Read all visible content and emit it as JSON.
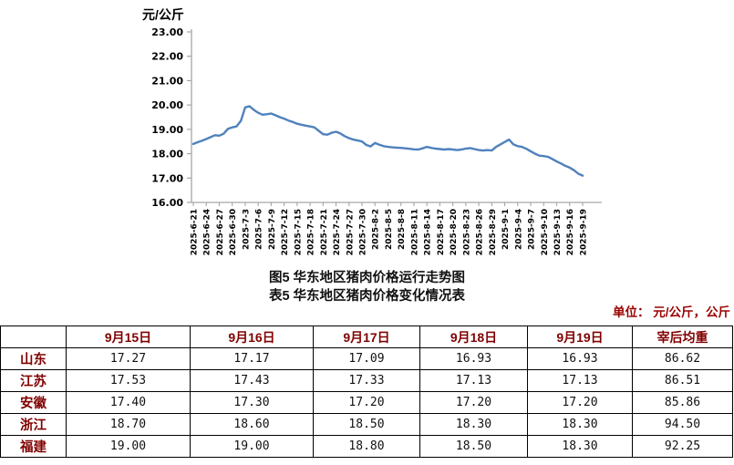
{
  "y_axis_title": "元/公斤",
  "titles": {
    "figure": "图5  华东地区猪肉价格运行走势图",
    "table": "表5  华东地区猪肉价格变化情况表"
  },
  "unit_note": "单位： 元/公斤，公斤",
  "colors": {
    "line": "#4f81bd",
    "axis": "#a6a6a6",
    "header_text": "#800000",
    "unit_text": "#990000"
  },
  "chart_data": [
    {
      "type": "line",
      "title": "图5 华东地区猪肉价格运行走势图",
      "xlabel": "",
      "ylabel": "元/公斤",
      "ylim": [
        16,
        23
      ],
      "grid": false,
      "legend": false,
      "y_tick_labels": [
        "23.00",
        "22.00",
        "21.00",
        "20.00",
        "19.00",
        "18.00",
        "17.00",
        "16.00"
      ],
      "x_tick_labels": [
        "2025-6-21",
        "2025-6-24",
        "2025-6-27",
        "2025-6-30",
        "2025-7-3",
        "2025-7-6",
        "2025-7-9",
        "2025-7-12",
        "2025-7-15",
        "2025-7-18",
        "2025-7-21",
        "2025-7-24",
        "2025-7-27",
        "2025-7-30",
        "2025-8-2",
        "2025-8-5",
        "2025-8-8",
        "2025-8-11",
        "2025-8-14",
        "2025-8-17",
        "2025-8-20",
        "2025-8-23",
        "2025-8-26",
        "2025-8-29",
        "2025-9-1",
        "2025-9-4",
        "2025-9-7",
        "2025-9-10",
        "2025-9-13",
        "2025-9-16",
        "2025-9-19"
      ],
      "x": [
        "2025-6-21",
        "2025-6-22",
        "2025-6-23",
        "2025-6-24",
        "2025-6-25",
        "2025-6-26",
        "2025-6-27",
        "2025-6-28",
        "2025-6-29",
        "2025-6-30",
        "2025-7-1",
        "2025-7-2",
        "2025-7-3",
        "2025-7-4",
        "2025-7-5",
        "2025-7-6",
        "2025-7-7",
        "2025-7-8",
        "2025-7-9",
        "2025-7-10",
        "2025-7-11",
        "2025-7-12",
        "2025-7-13",
        "2025-7-14",
        "2025-7-15",
        "2025-7-16",
        "2025-7-17",
        "2025-7-18",
        "2025-7-19",
        "2025-7-20",
        "2025-7-21",
        "2025-7-22",
        "2025-7-23",
        "2025-7-24",
        "2025-7-25",
        "2025-7-26",
        "2025-7-27",
        "2025-7-28",
        "2025-7-29",
        "2025-7-30",
        "2025-7-31",
        "2025-8-1",
        "2025-8-2",
        "2025-8-3",
        "2025-8-4",
        "2025-8-5",
        "2025-8-6",
        "2025-8-7",
        "2025-8-8",
        "2025-8-9",
        "2025-8-10",
        "2025-8-11",
        "2025-8-12",
        "2025-8-13",
        "2025-8-14",
        "2025-8-15",
        "2025-8-16",
        "2025-8-17",
        "2025-8-18",
        "2025-8-19",
        "2025-8-20",
        "2025-8-21",
        "2025-8-22",
        "2025-8-23",
        "2025-8-24",
        "2025-8-25",
        "2025-8-26",
        "2025-8-27",
        "2025-8-28",
        "2025-8-29",
        "2025-8-30",
        "2025-8-31",
        "2025-9-1",
        "2025-9-2",
        "2025-9-3",
        "2025-9-4",
        "2025-9-5",
        "2025-9-6",
        "2025-9-7",
        "2025-9-8",
        "2025-9-9",
        "2025-9-10",
        "2025-9-11",
        "2025-9-12",
        "2025-9-13",
        "2025-9-14",
        "2025-9-15",
        "2025-9-16",
        "2025-9-17",
        "2025-9-18",
        "2025-9-19"
      ],
      "values": [
        18.4,
        18.47,
        18.53,
        18.6,
        18.68,
        18.76,
        18.74,
        18.82,
        19.02,
        19.08,
        19.12,
        19.35,
        19.9,
        19.95,
        19.8,
        19.68,
        19.6,
        19.62,
        19.65,
        19.58,
        19.5,
        19.44,
        19.36,
        19.3,
        19.23,
        19.19,
        19.15,
        19.12,
        19.08,
        18.94,
        18.8,
        18.78,
        18.86,
        18.9,
        18.83,
        18.72,
        18.64,
        18.58,
        18.54,
        18.5,
        18.36,
        18.3,
        18.44,
        18.37,
        18.31,
        18.28,
        18.26,
        18.25,
        18.24,
        18.22,
        18.2,
        18.18,
        18.17,
        18.22,
        18.28,
        18.24,
        18.21,
        18.19,
        18.17,
        18.19,
        18.17,
        18.15,
        18.17,
        18.21,
        18.23,
        18.19,
        18.15,
        18.13,
        18.15,
        18.13,
        18.28,
        18.38,
        18.48,
        18.58,
        18.38,
        18.31,
        18.28,
        18.2,
        18.1,
        18.0,
        17.92,
        17.9,
        17.87,
        17.78,
        17.68,
        17.6,
        17.5,
        17.43,
        17.32,
        17.18,
        17.1
      ]
    },
    {
      "type": "table",
      "title": "表5 华东地区猪肉价格变化情况表",
      "columns": [
        "",
        "9月15日",
        "9月16日",
        "9月17日",
        "9月18日",
        "9月19日",
        "宰后均重"
      ],
      "rows": [
        {
          "label": "山东",
          "values": [
            "17.27",
            "17.17",
            "17.09",
            "16.93",
            "16.93",
            "86.62"
          ]
        },
        {
          "label": "江苏",
          "values": [
            "17.53",
            "17.43",
            "17.33",
            "17.13",
            "17.13",
            "86.51"
          ]
        },
        {
          "label": "安徽",
          "values": [
            "17.40",
            "17.30",
            "17.20",
            "17.20",
            "17.20",
            "85.86"
          ]
        },
        {
          "label": "浙江",
          "values": [
            "18.70",
            "18.60",
            "18.50",
            "18.30",
            "18.30",
            "94.50"
          ]
        },
        {
          "label": "福建",
          "values": [
            "19.00",
            "19.00",
            "18.80",
            "18.50",
            "18.30",
            "92.25"
          ]
        }
      ]
    }
  ]
}
